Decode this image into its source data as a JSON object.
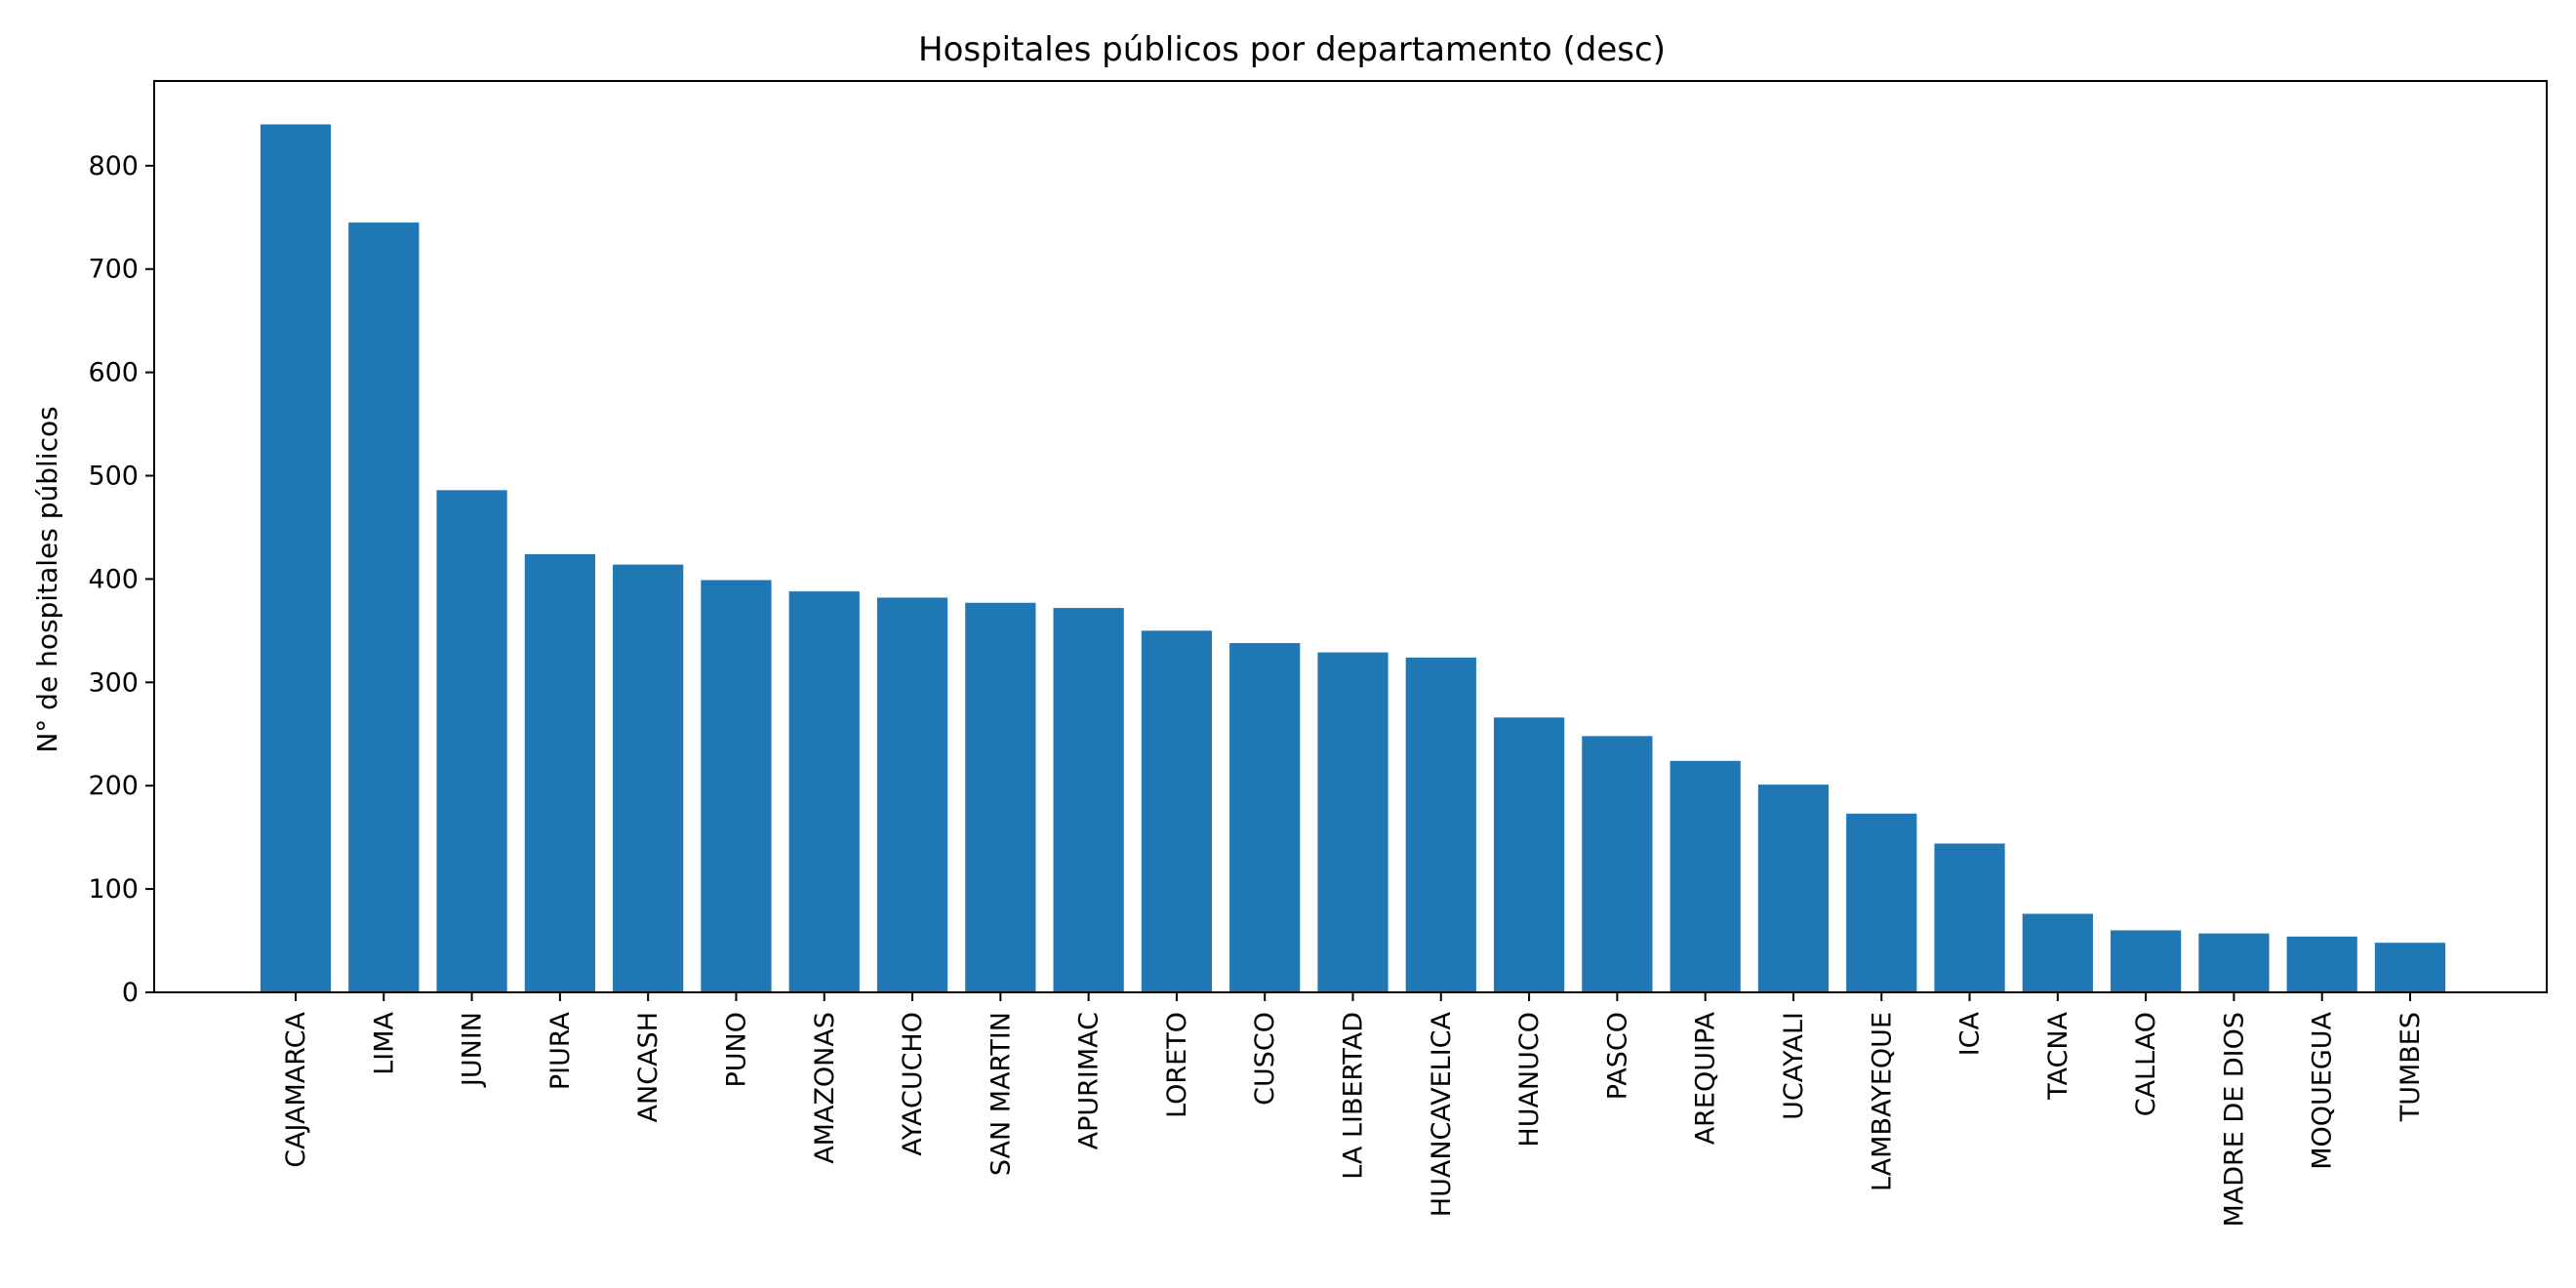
{
  "chart_data": {
    "type": "bar",
    "title": "Hospitales públicos por departamento (desc)",
    "xlabel": "",
    "ylabel": "N° de hospitales públicos",
    "ylim": [
      0,
      882
    ],
    "yticks": [
      0,
      100,
      200,
      300,
      400,
      500,
      600,
      700,
      800
    ],
    "grid": false,
    "bar_color": "#1f77b4",
    "categories": [
      "CAJAMARCA",
      "LIMA",
      "JUNIN",
      "PIURA",
      "ANCASH",
      "PUNO",
      "AMAZONAS",
      "AYACUCHO",
      "SAN MARTIN",
      "APURIMAC",
      "LORETO",
      "CUSCO",
      "LA LIBERTAD",
      "HUANCAVELICA",
      "HUANUCO",
      "PASCO",
      "AREQUIPA",
      "UCAYALI",
      "LAMBAYEQUE",
      "ICA",
      "TACNA",
      "CALLAO",
      "MADRE DE DIOS",
      "MOQUEGUA",
      "TUMBES"
    ],
    "values": [
      840,
      745,
      486,
      424,
      414,
      399,
      388,
      382,
      377,
      372,
      350,
      338,
      329,
      324,
      266,
      248,
      224,
      201,
      173,
      144,
      76,
      60,
      57,
      54,
      48
    ]
  }
}
